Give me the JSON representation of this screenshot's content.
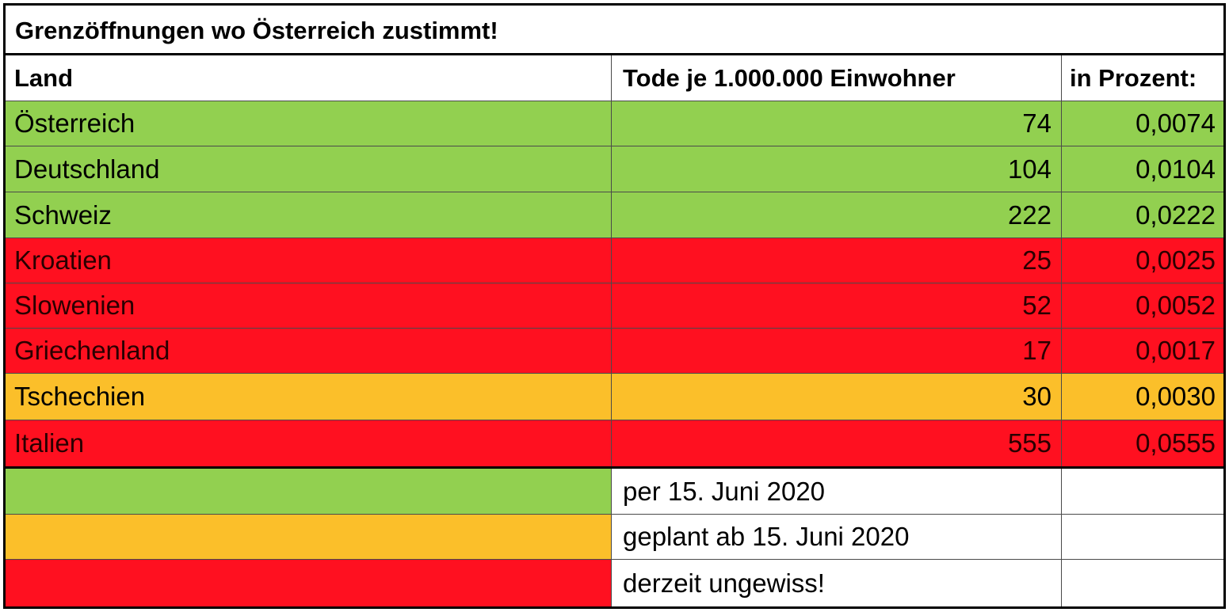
{
  "title": "Grenzöffnungen wo Österreich zustimmt!",
  "headers": {
    "land": "Land",
    "tode": "Tode je 1.000.000 Einwohner",
    "prozent": "in Prozent:"
  },
  "colors": {
    "green": "#92d050",
    "red": "#ff1020",
    "orange": "#fbbf2a",
    "text_dark": "#000000",
    "text_red": "#2a0000"
  },
  "rows": [
    {
      "land": "Österreich",
      "tode": "74",
      "prozent": "0,0074",
      "status": "green"
    },
    {
      "land": "Deutschland",
      "tode": "104",
      "prozent": "0,0104",
      "status": "green"
    },
    {
      "land": "Schweiz",
      "tode": "222",
      "prozent": "0,0222",
      "status": "green"
    },
    {
      "land": "Kroatien",
      "tode": "25",
      "prozent": "0,0025",
      "status": "red"
    },
    {
      "land": "Slowenien",
      "tode": "52",
      "prozent": "0,0052",
      "status": "red"
    },
    {
      "land": "Griechenland",
      "tode": "17",
      "prozent": "0,0017",
      "status": "red"
    },
    {
      "land": "Tschechien",
      "tode": "30",
      "prozent": "0,0030",
      "status": "orange"
    },
    {
      "land": "Italien",
      "tode": "555",
      "prozent": "0,0555",
      "status": "red"
    }
  ],
  "legend": [
    {
      "status": "green",
      "label": "per 15. Juni 2020"
    },
    {
      "status": "orange",
      "label": "geplant ab 15. Juni 2020"
    },
    {
      "status": "red",
      "label": "derzeit ungewiss!"
    }
  ]
}
